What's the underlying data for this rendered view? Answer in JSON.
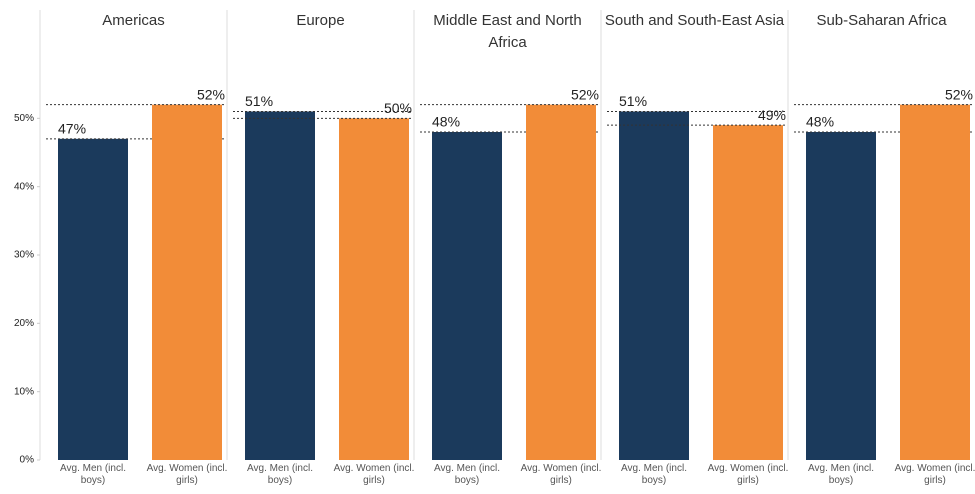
{
  "chart_data": [
    {
      "type": "bar",
      "title": "Americas",
      "categories": [
        "Avg. Men (incl. boys)",
        "Avg. Women (incl. girls)"
      ],
      "values": [
        47,
        52
      ],
      "value_labels": [
        "47%",
        "52%"
      ],
      "colors": [
        "#1b3a5c",
        "#f28c38"
      ],
      "ylim": [
        0,
        60
      ],
      "yticks": [
        {
          "value": 0,
          "label": "0%"
        },
        {
          "value": 10,
          "label": "10%"
        },
        {
          "value": 20,
          "label": "20%"
        },
        {
          "value": 30,
          "label": "30%"
        },
        {
          "value": 40,
          "label": "40%"
        },
        {
          "value": 50,
          "label": "50%"
        }
      ]
    },
    {
      "type": "bar",
      "title": "Europe",
      "categories": [
        "Avg. Men (incl. boys)",
        "Avg. Women (incl. girls)"
      ],
      "values": [
        51,
        50
      ],
      "value_labels": [
        "51%",
        "50%"
      ],
      "colors": [
        "#1b3a5c",
        "#f28c38"
      ],
      "ylim": [
        0,
        60
      ]
    },
    {
      "type": "bar",
      "title": "Middle East and North Africa",
      "categories": [
        "Avg. Men (incl. boys)",
        "Avg. Women (incl. girls)"
      ],
      "values": [
        48,
        52
      ],
      "value_labels": [
        "48%",
        "52%"
      ],
      "colors": [
        "#1b3a5c",
        "#f28c38"
      ],
      "ylim": [
        0,
        60
      ]
    },
    {
      "type": "bar",
      "title": "South and South-East Asia",
      "categories": [
        "Avg. Men (incl. boys)",
        "Avg. Women (incl. girls)"
      ],
      "values": [
        51,
        49
      ],
      "value_labels": [
        "51%",
        "49%"
      ],
      "colors": [
        "#1b3a5c",
        "#f28c38"
      ],
      "ylim": [
        0,
        60
      ]
    },
    {
      "type": "bar",
      "title": "Sub-Saharan Africa",
      "categories": [
        "Avg. Men (incl. boys)",
        "Avg. Women (incl. girls)"
      ],
      "values": [
        48,
        52
      ],
      "value_labels": [
        "48%",
        "52%"
      ],
      "colors": [
        "#1b3a5c",
        "#f28c38"
      ],
      "ylim": [
        0,
        60
      ]
    }
  ]
}
